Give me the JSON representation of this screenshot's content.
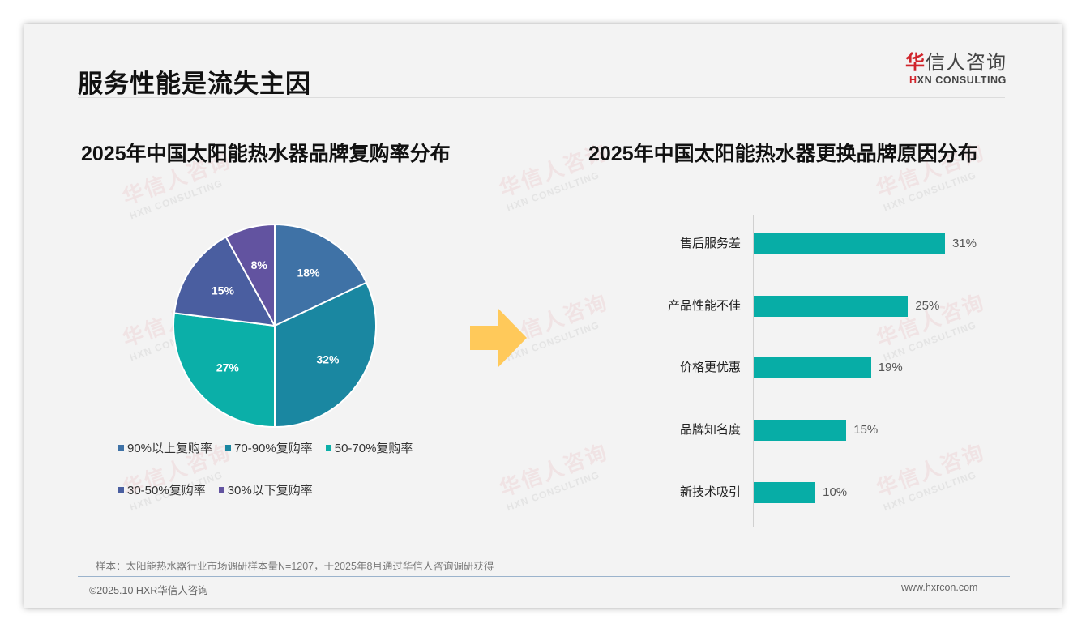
{
  "slide": {
    "title": "服务性能是流失主因",
    "logo": {
      "cn_accent": "华",
      "cn_rest": "信人咨询",
      "en_accent": "H",
      "en_rest": "XN CONSULTING"
    },
    "watermark": {
      "cn": "华信人咨询",
      "en": "HXN CONSULTING"
    },
    "note": "样本：太阳能热水器行业市场调研样本量N=1207，于2025年8月通过华信人咨询调研获得",
    "footer_left": "©2025.10 HXR华信人咨询",
    "footer_right": "www.hxrcon.com",
    "arrow_color": "#ffc95a"
  },
  "chart_data": [
    {
      "type": "pie",
      "title": "2025年中国太阳能热水器品牌复购率分布",
      "categories": [
        "90%以上复购率",
        "70-90%复购率",
        "50-70%复购率",
        "30-50%复购率",
        "30%以下复购率"
      ],
      "values": [
        18,
        32,
        27,
        15,
        8
      ],
      "labels": [
        "18%",
        "32%",
        "27%",
        "15%",
        "8%"
      ],
      "colors": [
        "#3f72a6",
        "#1a87a1",
        "#0bafa8",
        "#4a5ea0",
        "#6253a0"
      ],
      "legend_position": "bottom",
      "start_angle": "12 o'clock, clockwise"
    },
    {
      "type": "bar",
      "orientation": "horizontal",
      "title": "2025年中国太阳能热水器更换品牌原因分布",
      "categories": [
        "售后服务差",
        "产品性能不佳",
        "价格更优惠",
        "品牌知名度",
        "新技术吸引"
      ],
      "values": [
        31,
        25,
        19,
        15,
        10
      ],
      "labels": [
        "31%",
        "25%",
        "19%",
        "15%",
        "10%"
      ],
      "color": "#07ada6",
      "xlabel": "",
      "ylabel": "",
      "grid": false
    }
  ]
}
